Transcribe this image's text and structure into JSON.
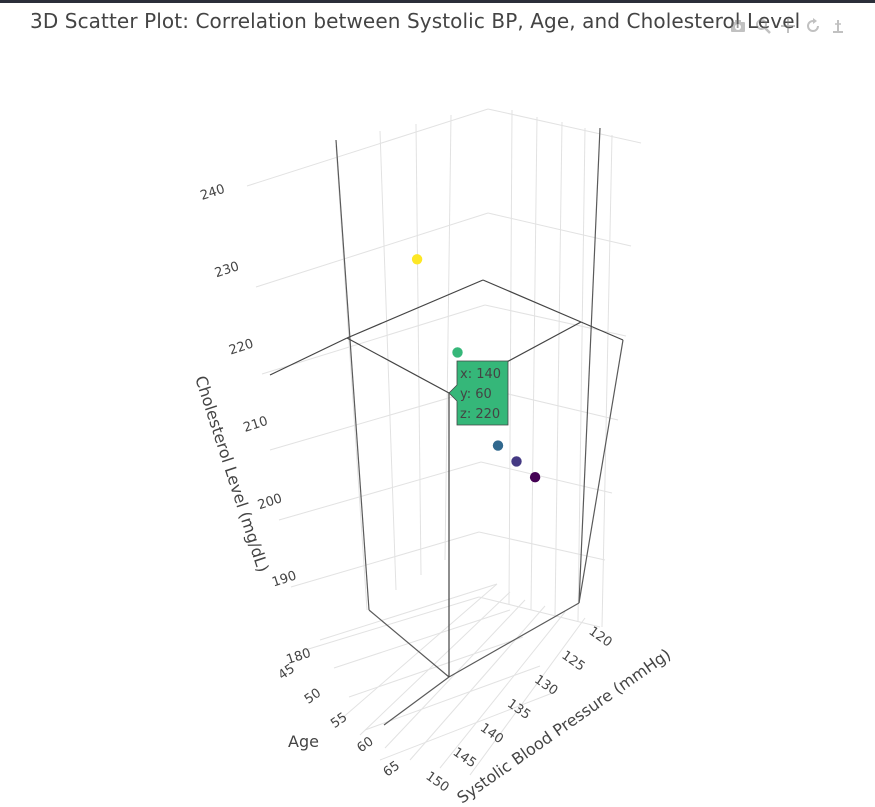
{
  "title": "3D Scatter Plot: Correlation between Systolic BP, Age, and Cholesterol Level",
  "modebar": {
    "icons": [
      "camera-icon",
      "zoom-icon",
      "pan-icon",
      "orbit-icon",
      "home-icon"
    ]
  },
  "chart_data": {
    "type": "scatter3d",
    "title": "3D Scatter Plot: Correlation between Systolic BP, Age, and Cholesterol Level",
    "xlabel": "Systolic Blood Pressure (mmHg)",
    "ylabel": "Age",
    "zlabel": "Cholesterol Level (mg/dL)",
    "xlim": [
      118,
      152
    ],
    "ylim": [
      44,
      66
    ],
    "zlim": [
      180,
      245
    ],
    "x_ticks": [
      120,
      125,
      130,
      135,
      140,
      145,
      150
    ],
    "y_ticks": [
      45,
      50,
      55,
      60,
      65
    ],
    "z_ticks": [
      180,
      190,
      200,
      210,
      220,
      230,
      240
    ],
    "points": [
      {
        "x": 120,
        "y": 45,
        "z": 190,
        "color": "#440154"
      },
      {
        "x": 125,
        "y": 50,
        "z": 195,
        "color": "#443983"
      },
      {
        "x": 130,
        "y": 55,
        "z": 200,
        "color": "#31688e"
      },
      {
        "x": 140,
        "y": 60,
        "z": 220,
        "color": "#35b779"
      },
      {
        "x": 150,
        "y": 65,
        "z": 240,
        "color": "#fde725"
      }
    ],
    "colorscale": "viridis",
    "grid": true,
    "hover": {
      "x_label": "x: 140",
      "y_label": "y: 60",
      "z_label": "z: 220",
      "fill": "#35b779"
    }
  }
}
